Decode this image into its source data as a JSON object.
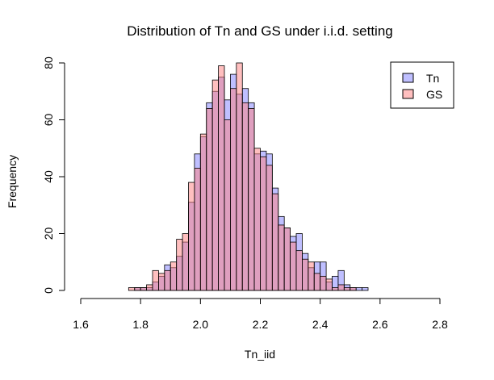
{
  "chart_data": {
    "type": "bar",
    "title": "Distribution of Tn and GS under i.i.d. setting",
    "xlabel": "Tn_iid",
    "ylabel": "Frequency",
    "xlim": [
      1.6,
      2.8
    ],
    "ylim": [
      0,
      80
    ],
    "xticks": [
      "1.6",
      "1.8",
      "2.0",
      "2.2",
      "2.4",
      "2.6",
      "2.8"
    ],
    "yticks": [
      "0",
      "20",
      "40",
      "60",
      "80"
    ],
    "bin_width": 0.02,
    "legend_position": "top-right",
    "series": [
      {
        "name": "Tn",
        "color": "#8080ff",
        "bins": [
          {
            "x0": 1.78,
            "count": 1
          },
          {
            "x0": 1.8,
            "count": 1
          },
          {
            "x0": 1.82,
            "count": 1
          },
          {
            "x0": 1.84,
            "count": 3
          },
          {
            "x0": 1.86,
            "count": 5
          },
          {
            "x0": 1.88,
            "count": 9
          },
          {
            "x0": 1.9,
            "count": 8
          },
          {
            "x0": 1.92,
            "count": 12
          },
          {
            "x0": 1.94,
            "count": 17
          },
          {
            "x0": 1.96,
            "count": 31
          },
          {
            "x0": 1.98,
            "count": 48
          },
          {
            "x0": 2.0,
            "count": 54
          },
          {
            "x0": 2.02,
            "count": 66
          },
          {
            "x0": 2.04,
            "count": 70
          },
          {
            "x0": 2.06,
            "count": 75
          },
          {
            "x0": 2.08,
            "count": 67
          },
          {
            "x0": 2.1,
            "count": 76
          },
          {
            "x0": 2.12,
            "count": 69
          },
          {
            "x0": 2.14,
            "count": 71
          },
          {
            "x0": 2.16,
            "count": 66
          },
          {
            "x0": 2.18,
            "count": 48
          },
          {
            "x0": 2.2,
            "count": 49
          },
          {
            "x0": 2.22,
            "count": 48
          },
          {
            "x0": 2.24,
            "count": 36
          },
          {
            "x0": 2.26,
            "count": 26
          },
          {
            "x0": 2.28,
            "count": 22
          },
          {
            "x0": 2.3,
            "count": 19
          },
          {
            "x0": 2.32,
            "count": 20
          },
          {
            "x0": 2.34,
            "count": 13
          },
          {
            "x0": 2.36,
            "count": 8
          },
          {
            "x0": 2.38,
            "count": 10
          },
          {
            "x0": 2.4,
            "count": 10
          },
          {
            "x0": 2.42,
            "count": 3
          },
          {
            "x0": 2.44,
            "count": 5
          },
          {
            "x0": 2.46,
            "count": 7
          },
          {
            "x0": 2.48,
            "count": 2
          },
          {
            "x0": 2.5,
            "count": 1
          },
          {
            "x0": 2.52,
            "count": 1
          },
          {
            "x0": 2.54,
            "count": 1
          }
        ]
      },
      {
        "name": "GS",
        "color": "#ff8080",
        "bins": [
          {
            "x0": 1.76,
            "count": 1
          },
          {
            "x0": 1.78,
            "count": 1
          },
          {
            "x0": 1.8,
            "count": 1
          },
          {
            "x0": 1.82,
            "count": 2
          },
          {
            "x0": 1.84,
            "count": 7
          },
          {
            "x0": 1.86,
            "count": 6
          },
          {
            "x0": 1.88,
            "count": 7
          },
          {
            "x0": 1.9,
            "count": 10
          },
          {
            "x0": 1.92,
            "count": 18
          },
          {
            "x0": 1.94,
            "count": 20
          },
          {
            "x0": 1.96,
            "count": 38
          },
          {
            "x0": 1.98,
            "count": 43
          },
          {
            "x0": 2.0,
            "count": 55
          },
          {
            "x0": 2.02,
            "count": 64
          },
          {
            "x0": 2.04,
            "count": 74
          },
          {
            "x0": 2.06,
            "count": 79
          },
          {
            "x0": 2.08,
            "count": 60
          },
          {
            "x0": 2.1,
            "count": 71
          },
          {
            "x0": 2.12,
            "count": 80
          },
          {
            "x0": 2.14,
            "count": 66
          },
          {
            "x0": 2.16,
            "count": 64
          },
          {
            "x0": 2.18,
            "count": 50
          },
          {
            "x0": 2.2,
            "count": 47
          },
          {
            "x0": 2.22,
            "count": 44
          },
          {
            "x0": 2.24,
            "count": 34
          },
          {
            "x0": 2.26,
            "count": 23
          },
          {
            "x0": 2.28,
            "count": 22
          },
          {
            "x0": 2.3,
            "count": 17
          },
          {
            "x0": 2.32,
            "count": 14
          },
          {
            "x0": 2.34,
            "count": 11
          },
          {
            "x0": 2.36,
            "count": 10
          },
          {
            "x0": 2.38,
            "count": 6
          },
          {
            "x0": 2.4,
            "count": 5
          },
          {
            "x0": 2.42,
            "count": 4
          },
          {
            "x0": 2.44,
            "count": 1
          },
          {
            "x0": 2.46,
            "count": 2
          },
          {
            "x0": 2.48,
            "count": 1
          },
          {
            "x0": 2.5,
            "count": 1
          }
        ]
      }
    ]
  }
}
